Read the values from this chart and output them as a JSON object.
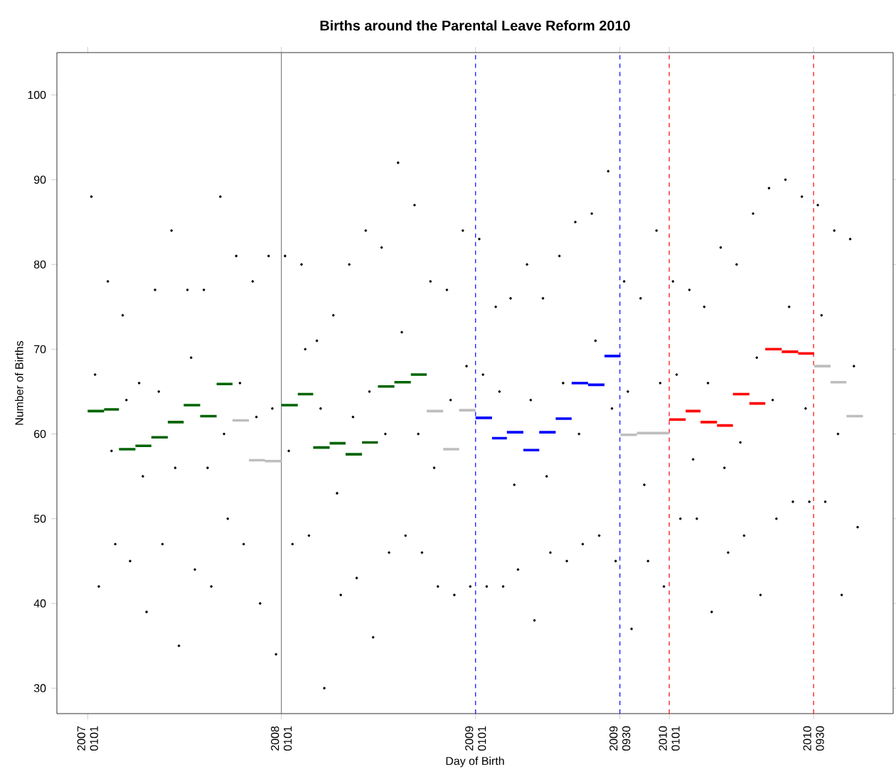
{
  "chart_data": {
    "type": "scatter",
    "title": "Births around the Parental Leave Reform 2010",
    "xlabel": "Day of Birth",
    "ylabel": "Number of Births",
    "xlim": [
      "2006-11-04",
      "2011-02-27"
    ],
    "ylim": [
      27,
      105
    ],
    "xticks": [
      {
        "value": "2007-01-01",
        "label": "2007 0101"
      },
      {
        "value": "2008-01-01",
        "label": "2008 0101"
      },
      {
        "value": "2009-01-01",
        "label": "2009 0101"
      },
      {
        "value": "2009-09-30",
        "label": "2009 0930"
      },
      {
        "value": "2010-01-01",
        "label": "2010 0101"
      },
      {
        "value": "2010-09-30",
        "label": "2010 0930"
      }
    ],
    "yticks": [
      30,
      40,
      50,
      60,
      70,
      80,
      90,
      100
    ],
    "ref_lines": [
      {
        "axis": "x",
        "value": "2008-01-01",
        "color": "#7f7f7f",
        "line_style": "solid"
      },
      {
        "axis": "x",
        "value": "2009-01-01",
        "color": "#0000ff",
        "line_style": "dashed"
      },
      {
        "axis": "x",
        "value": "2009-09-30",
        "color": "#0000ff",
        "line_style": "dashed"
      },
      {
        "axis": "x",
        "value": "2010-01-01",
        "color": "#ff0000",
        "line_style": "dashed"
      },
      {
        "axis": "x",
        "value": "2010-09-30",
        "color": "#ff0000",
        "line_style": "dashed"
      }
    ],
    "series": [
      {
        "color": "#000000",
        "marker": "circle",
        "x": [
          "2007-01-08",
          "2007-01-15",
          "2007-01-22",
          "2007-02-08",
          "2007-02-15",
          "2007-02-22",
          "2007-03-08",
          "2007-03-15",
          "2007-03-22",
          "2007-04-08",
          "2007-04-15",
          "2007-04-22",
          "2007-05-08",
          "2007-05-15",
          "2007-05-22",
          "2007-06-08",
          "2007-06-15",
          "2007-06-22",
          "2007-07-08",
          "2007-07-15",
          "2007-07-22",
          "2007-08-08",
          "2007-08-15",
          "2007-08-22",
          "2007-09-08",
          "2007-09-15",
          "2007-09-22",
          "2007-10-08",
          "2007-10-15",
          "2007-10-22",
          "2007-11-08",
          "2007-11-15",
          "2007-11-22",
          "2007-12-08",
          "2007-12-15",
          "2007-12-22",
          "2008-01-08",
          "2008-01-15",
          "2008-01-22",
          "2008-02-08",
          "2008-02-15",
          "2008-02-22",
          "2008-03-08",
          "2008-03-15",
          "2008-03-22",
          "2008-04-08",
          "2008-04-15",
          "2008-04-22",
          "2008-05-08",
          "2008-05-15",
          "2008-05-22",
          "2008-06-08",
          "2008-06-15",
          "2008-06-22",
          "2008-07-08",
          "2008-07-15",
          "2008-07-22",
          "2008-08-08",
          "2008-08-15",
          "2008-08-22",
          "2008-09-08",
          "2008-09-15",
          "2008-09-22",
          "2008-10-08",
          "2008-10-15",
          "2008-10-22",
          "2008-11-08",
          "2008-11-15",
          "2008-11-22",
          "2008-12-08",
          "2008-12-15",
          "2008-12-22",
          "2009-01-08",
          "2009-01-15",
          "2009-01-22",
          "2009-02-08",
          "2009-02-15",
          "2009-02-22",
          "2009-03-08",
          "2009-03-15",
          "2009-03-22",
          "2009-04-08",
          "2009-04-15",
          "2009-04-22",
          "2009-05-08",
          "2009-05-15",
          "2009-05-22",
          "2009-06-08",
          "2009-06-15",
          "2009-06-22",
          "2009-07-08",
          "2009-07-15",
          "2009-07-22",
          "2009-08-08",
          "2009-08-15",
          "2009-08-22",
          "2009-09-08",
          "2009-09-15",
          "2009-09-22",
          "2009-10-08",
          "2009-10-15",
          "2009-10-22",
          "2009-11-08",
          "2009-11-15",
          "2009-11-22",
          "2009-12-08",
          "2009-12-15",
          "2009-12-22",
          "2010-01-08",
          "2010-01-15",
          "2010-01-22",
          "2010-02-08",
          "2010-02-15",
          "2010-02-22",
          "2010-03-08",
          "2010-03-15",
          "2010-03-22",
          "2010-04-08",
          "2010-04-15",
          "2010-04-22",
          "2010-05-08",
          "2010-05-15",
          "2010-05-22",
          "2010-06-08",
          "2010-06-15",
          "2010-06-22",
          "2010-07-08",
          "2010-07-15",
          "2010-07-22",
          "2010-08-08",
          "2010-08-15",
          "2010-08-22",
          "2010-09-08",
          "2010-09-15",
          "2010-09-22",
          "2010-10-08",
          "2010-10-15",
          "2010-10-22",
          "2010-11-08",
          "2010-11-15",
          "2010-11-22",
          "2010-12-08",
          "2010-12-15",
          "2010-12-22"
        ],
        "values": [
          88,
          67,
          42,
          78,
          58,
          47,
          74,
          64,
          45,
          66,
          55,
          39,
          77,
          65,
          47,
          84,
          56,
          35,
          77,
          69,
          44,
          77,
          56,
          42,
          88,
          60,
          50,
          81,
          66,
          47,
          78,
          62,
          40,
          81,
          63,
          34,
          81,
          58,
          47,
          80,
          70,
          48,
          71,
          63,
          30,
          74,
          53,
          41,
          80,
          62,
          43,
          84,
          65,
          36,
          82,
          60,
          46,
          92,
          72,
          48,
          87,
          60,
          46,
          78,
          56,
          42,
          77,
          64,
          41,
          84,
          68,
          42,
          83,
          67,
          42,
          75,
          65,
          42,
          76,
          54,
          44,
          80,
          64,
          38,
          76,
          55,
          46,
          81,
          66,
          45,
          85,
          60,
          47,
          86,
          71,
          48,
          91,
          63,
          45,
          78,
          65,
          37,
          76,
          54,
          45,
          84,
          66,
          42,
          78,
          67,
          50,
          77,
          57,
          50,
          75,
          66,
          39,
          82,
          56,
          46,
          80,
          59,
          48,
          86,
          69,
          41,
          89,
          64,
          50,
          90,
          75,
          52,
          88,
          63,
          52,
          87,
          74,
          52,
          84,
          60,
          41,
          83,
          68,
          49
        ]
      },
      {
        "type": "line",
        "color": "#006400",
        "x": [
          "2007-01-01",
          "2007-02-01",
          null,
          "2007-02-01",
          "2007-03-01",
          null,
          "2007-03-01",
          "2007-04-01",
          null,
          "2007-04-01",
          "2007-05-01",
          null,
          "2007-05-01",
          "2007-06-01",
          null,
          "2007-06-01",
          "2007-07-01",
          null,
          "2007-07-01",
          "2007-08-01",
          null,
          "2007-08-01",
          "2007-09-01",
          null,
          "2007-09-01",
          "2007-10-01",
          null,
          "2008-01-01",
          "2008-02-01",
          null,
          "2008-02-01",
          "2008-03-01",
          null,
          "2008-03-01",
          "2008-04-01",
          null,
          "2008-04-01",
          "2008-05-01",
          null,
          "2008-05-01",
          "2008-06-01",
          null,
          "2008-06-01",
          "2008-07-01",
          null,
          "2008-07-01",
          "2008-08-01",
          null,
          "2008-08-01",
          "2008-09-01",
          null,
          "2008-09-01",
          "2008-10-01"
        ],
        "values": [
          62.7,
          62.7,
          null,
          62.9,
          62.9,
          null,
          58.2,
          58.2,
          null,
          58.6,
          58.6,
          null,
          59.6,
          59.6,
          null,
          61.4,
          61.4,
          null,
          63.4,
          63.4,
          null,
          62.1,
          62.1,
          null,
          65.9,
          65.9,
          null,
          63.4,
          63.4,
          null,
          64.7,
          64.7,
          null,
          58.4,
          58.4,
          null,
          58.9,
          58.9,
          null,
          57.6,
          57.6,
          null,
          59.0,
          59.0,
          null,
          65.6,
          65.6,
          null,
          66.1,
          66.1,
          null,
          67.0,
          67.0
        ]
      },
      {
        "type": "line",
        "color": "#bebebe",
        "x": [
          "2007-10-01",
          "2007-11-01",
          null,
          "2007-11-01",
          "2007-12-01",
          null,
          "2007-12-01",
          "2008-01-01",
          null,
          "2008-10-01",
          "2008-11-01",
          null,
          "2008-11-01",
          "2008-12-01",
          null,
          "2008-12-01",
          "2009-01-01",
          null,
          "2009-10-01",
          "2009-11-01",
          null,
          "2009-11-01",
          "2009-12-01",
          null,
          "2009-12-01",
          "2010-01-01",
          null,
          "2010-10-01",
          "2010-11-01",
          null,
          "2010-11-01",
          "2010-12-01",
          null,
          "2010-12-01",
          "2011-01-01"
        ],
        "values": [
          61.6,
          61.6,
          null,
          56.9,
          56.9,
          null,
          56.8,
          56.8,
          null,
          62.7,
          62.7,
          null,
          58.2,
          58.2,
          null,
          62.8,
          62.8,
          null,
          59.9,
          59.9,
          null,
          60.1,
          60.1,
          null,
          60.1,
          60.1,
          null,
          68.0,
          68.0,
          null,
          66.1,
          66.1,
          null,
          62.1,
          62.1
        ]
      },
      {
        "type": "line",
        "color": "#0000ff",
        "x": [
          "2009-01-01",
          "2009-02-01",
          null,
          "2009-02-01",
          "2009-03-01",
          null,
          "2009-03-01",
          "2009-04-01",
          null,
          "2009-04-01",
          "2009-05-01",
          null,
          "2009-05-01",
          "2009-06-01",
          null,
          "2009-06-01",
          "2009-07-01",
          null,
          "2009-07-01",
          "2009-08-01",
          null,
          "2009-08-01",
          "2009-09-01",
          null,
          "2009-09-01",
          "2009-10-01"
        ],
        "values": [
          61.9,
          61.9,
          null,
          59.5,
          59.5,
          null,
          60.2,
          60.2,
          null,
          58.1,
          58.1,
          null,
          60.2,
          60.2,
          null,
          61.8,
          61.8,
          null,
          66.0,
          66.0,
          null,
          65.8,
          65.8,
          null,
          69.2,
          69.2
        ]
      },
      {
        "type": "line",
        "color": "#ff0000",
        "x": [
          "2010-01-01",
          "2010-02-01",
          null,
          "2010-02-01",
          "2010-03-01",
          null,
          "2010-03-01",
          "2010-04-01",
          null,
          "2010-04-01",
          "2010-05-01",
          null,
          "2010-05-01",
          "2010-06-01",
          null,
          "2010-06-01",
          "2010-07-01",
          null,
          "2010-07-01",
          "2010-08-01",
          null,
          "2010-08-01",
          "2010-09-01",
          null,
          "2010-09-01",
          "2010-10-01"
        ],
        "values": [
          61.7,
          61.7,
          null,
          62.7,
          62.7,
          null,
          61.4,
          61.4,
          null,
          61.0,
          61.0,
          null,
          64.7,
          64.7,
          null,
          63.6,
          63.6,
          null,
          70.0,
          70.0,
          null,
          69.7,
          69.7,
          null,
          69.5,
          69.5
        ]
      }
    ]
  }
}
